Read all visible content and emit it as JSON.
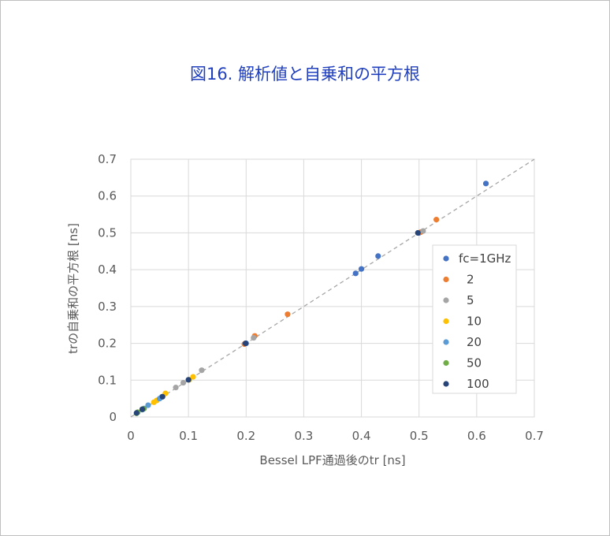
{
  "chart_data": {
    "type": "scatter",
    "title": "図16. 解析値と自乗和の平方根",
    "xlabel": "Bessel LPF通過後のtr [ns]",
    "ylabel": "trの自乗和の平方根 [ns]",
    "xlim": [
      0,
      0.7
    ],
    "ylim": [
      0,
      0.7
    ],
    "xticks": [
      "0",
      "0.1",
      "0.2",
      "0.3",
      "0.4",
      "0.5",
      "0.6",
      "0.7"
    ],
    "yticks": [
      "0",
      "0.1",
      "0.2",
      "0.3",
      "0.4",
      "0.5",
      "0.6",
      "0.7"
    ],
    "grid": true,
    "reference_line": {
      "style": "dashed",
      "color": "#a6a6a6",
      "from": [
        0,
        0
      ],
      "to": [
        0.7,
        0.7
      ]
    },
    "legend_position": "right",
    "series": [
      {
        "name": "fc=1GHz",
        "color": "#4472c4",
        "points": [
          [
            0.616,
            0.634
          ],
          [
            0.429,
            0.437
          ],
          [
            0.4,
            0.402
          ],
          [
            0.39,
            0.39
          ],
          [
            0.5,
            0.5
          ],
          [
            0.2,
            0.2
          ]
        ]
      },
      {
        "name": "2",
        "color": "#ed7d31",
        "points": [
          [
            0.53,
            0.536
          ],
          [
            0.272,
            0.279
          ],
          [
            0.215,
            0.22
          ],
          [
            0.197,
            0.198
          ],
          [
            0.503,
            0.502
          ]
        ]
      },
      {
        "name": "5",
        "color": "#a5a5a5",
        "points": [
          [
            0.123,
            0.127
          ],
          [
            0.091,
            0.093
          ],
          [
            0.078,
            0.08
          ],
          [
            0.213,
            0.215
          ],
          [
            0.507,
            0.505
          ]
        ]
      },
      {
        "name": "10",
        "color": "#ffc000",
        "points": [
          [
            0.06,
            0.064
          ],
          [
            0.045,
            0.045
          ],
          [
            0.04,
            0.04
          ],
          [
            0.108,
            0.109
          ],
          [
            0.101,
            0.101
          ]
        ]
      },
      {
        "name": "20",
        "color": "#5b9bd5",
        "points": [
          [
            0.03,
            0.032
          ],
          [
            0.023,
            0.023
          ],
          [
            0.02,
            0.02
          ],
          [
            0.054,
            0.055
          ],
          [
            0.05,
            0.05
          ]
        ]
      },
      {
        "name": "50",
        "color": "#70ad47",
        "points": [
          [
            0.012,
            0.013
          ],
          [
            0.01,
            0.01
          ],
          [
            0.022,
            0.022
          ],
          [
            0.02,
            0.021
          ]
        ]
      },
      {
        "name": "100",
        "color": "#264478",
        "points": [
          [
            0.01,
            0.011
          ],
          [
            0.02,
            0.021
          ],
          [
            0.055,
            0.055
          ],
          [
            0.1,
            0.101
          ],
          [
            0.199,
            0.2
          ],
          [
            0.498,
            0.5
          ]
        ]
      }
    ]
  }
}
